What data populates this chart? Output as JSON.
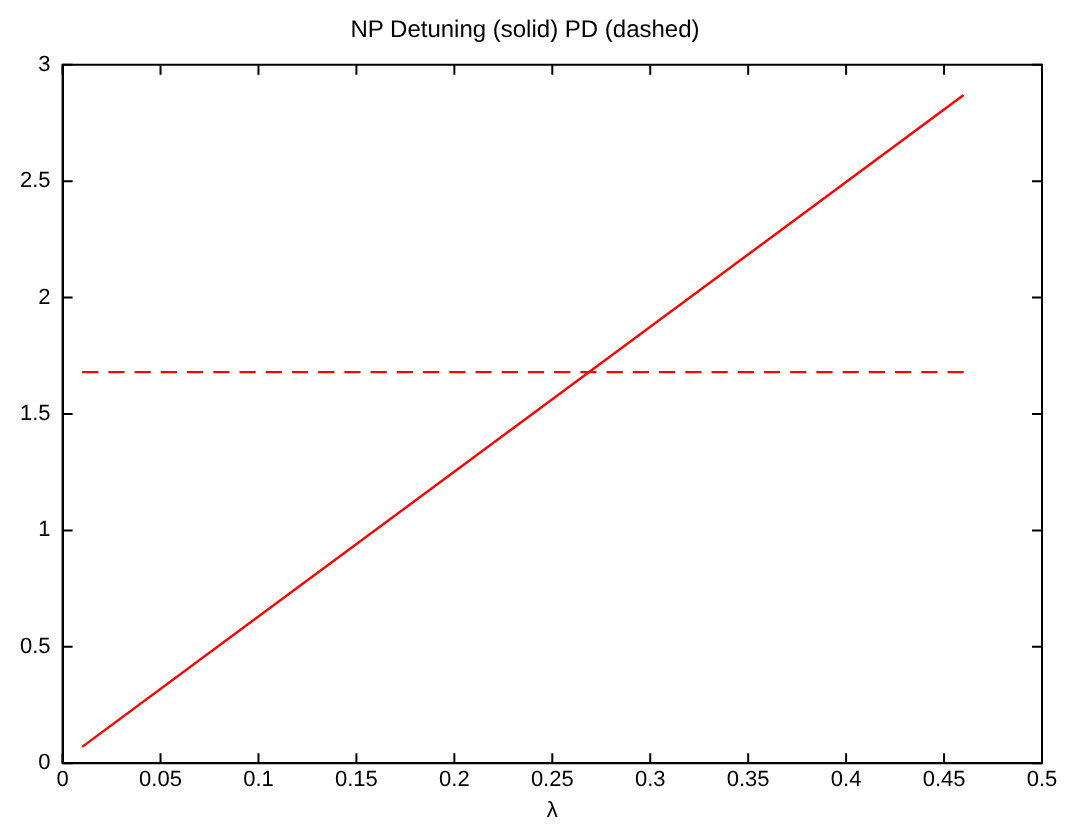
{
  "chart_data": {
    "type": "line",
    "title": "NP Detuning (solid) PD (dashed)",
    "xlabel": "λ",
    "x": [
      0.01,
      0.46
    ],
    "series": [
      {
        "color": "#ff0000",
        "line_style": "solid",
        "values": [
          0.07,
          2.87
        ]
      },
      {
        "color": "#ff0000",
        "line_style": "dashed",
        "values": [
          1.68,
          1.68
        ]
      }
    ],
    "xlim": [
      0,
      0.5
    ],
    "xticks": [
      0,
      0.05,
      0.1,
      0.15,
      0.2,
      0.25,
      0.3,
      0.35,
      0.4,
      0.45,
      0.5
    ],
    "ylim": [
      0,
      3
    ],
    "yticks": [
      0,
      0.5,
      1,
      1.5,
      2,
      2.5,
      3
    ],
    "grid": false,
    "legend": false,
    "marker": "none"
  }
}
